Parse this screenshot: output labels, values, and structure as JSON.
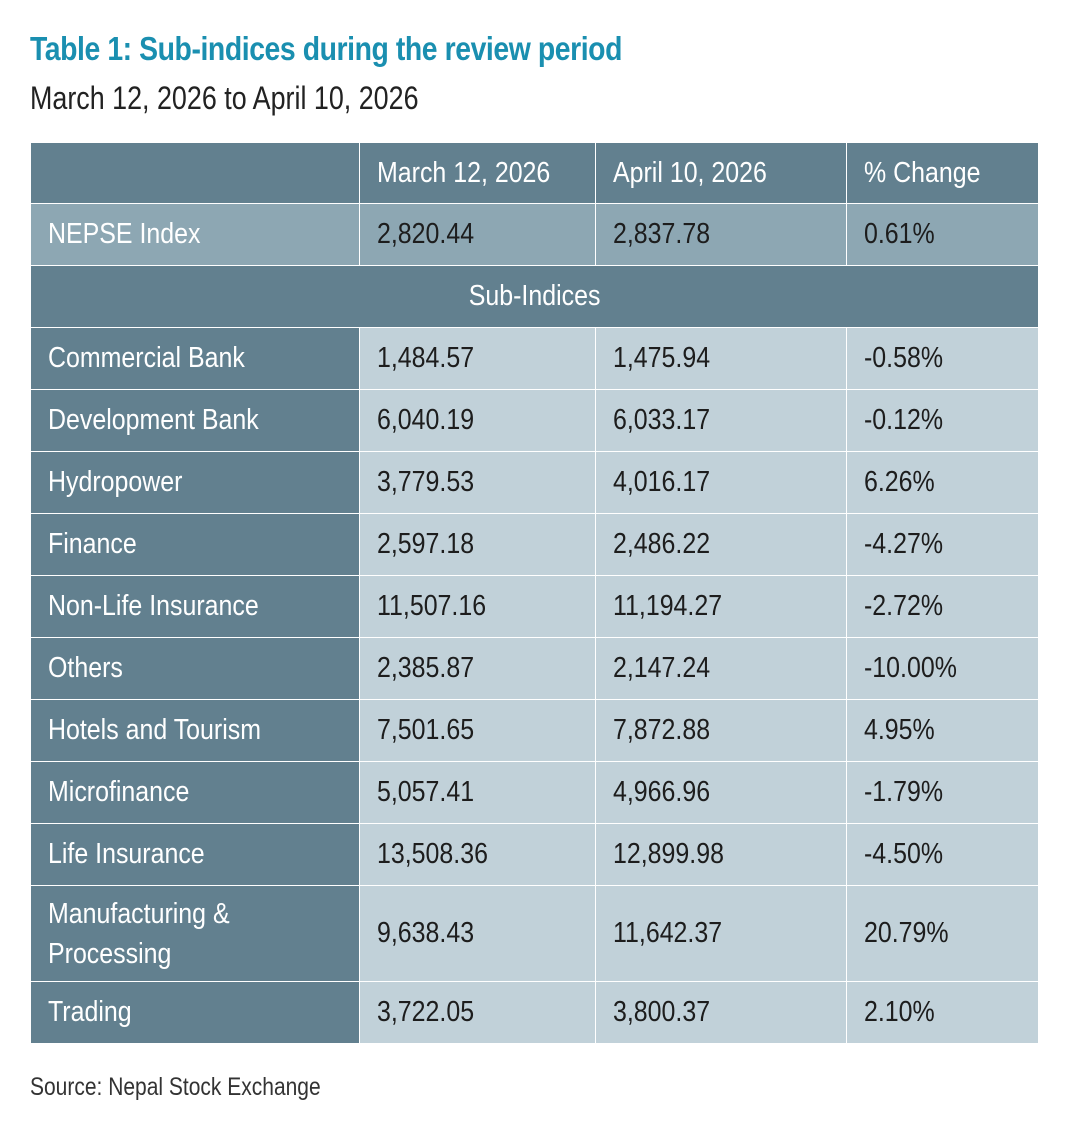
{
  "title": "Table 1: Sub-indices during the review period",
  "subtitle": "March 12, 2026 to April 10, 2026",
  "table": {
    "headers": [
      "",
      "March 12, 2026",
      "April 10, 2026",
      "% Change"
    ],
    "nepse": {
      "label": "NEPSE Index",
      "start": "2,820.44",
      "end": "2,837.78",
      "change": "0.61%"
    },
    "section_label": "Sub-Indices",
    "rows": [
      {
        "label": "Commercial Bank",
        "start": "1,484.57",
        "end": "1,475.94",
        "change": "-0.58%"
      },
      {
        "label": "Development Bank",
        "start": "6,040.19",
        "end": "6,033.17",
        "change": "-0.12%"
      },
      {
        "label": "Hydropower",
        "start": "3,779.53",
        "end": "4,016.17",
        "change": "6.26%"
      },
      {
        "label": "Finance",
        "start": "2,597.18",
        "end": "2,486.22",
        "change": "-4.27%"
      },
      {
        "label": "Non-Life Insurance",
        "start": "11,507.16",
        "end": "11,194.27",
        "change": "-2.72%"
      },
      {
        "label": "Others",
        "start": "2,385.87",
        "end": "2,147.24",
        "change": "-10.00%"
      },
      {
        "label": "Hotels and Tourism",
        "start": "7,501.65",
        "end": "7,872.88",
        "change": "4.95%"
      },
      {
        "label": "Microfinance",
        "start": "5,057.41",
        "end": "4,966.96",
        "change": "-1.79%"
      },
      {
        "label": "Life Insurance",
        "start": "13,508.36",
        "end": "12,899.98",
        "change": "-4.50%"
      },
      {
        "label": "Manufacturing & Processing",
        "start": "9,638.43",
        "end": "11,642.37",
        "change": "20.79%"
      },
      {
        "label": "Trading",
        "start": "3,722.05",
        "end": "3,800.37",
        "change": "2.10%"
      }
    ]
  },
  "source": "Source: Nepal Stock Exchange",
  "colors": {
    "title": "#1a8fb0",
    "header_bg": "#62808f",
    "nepse_bg": "#8da7b3",
    "body_bg": "#c1d1d9"
  }
}
